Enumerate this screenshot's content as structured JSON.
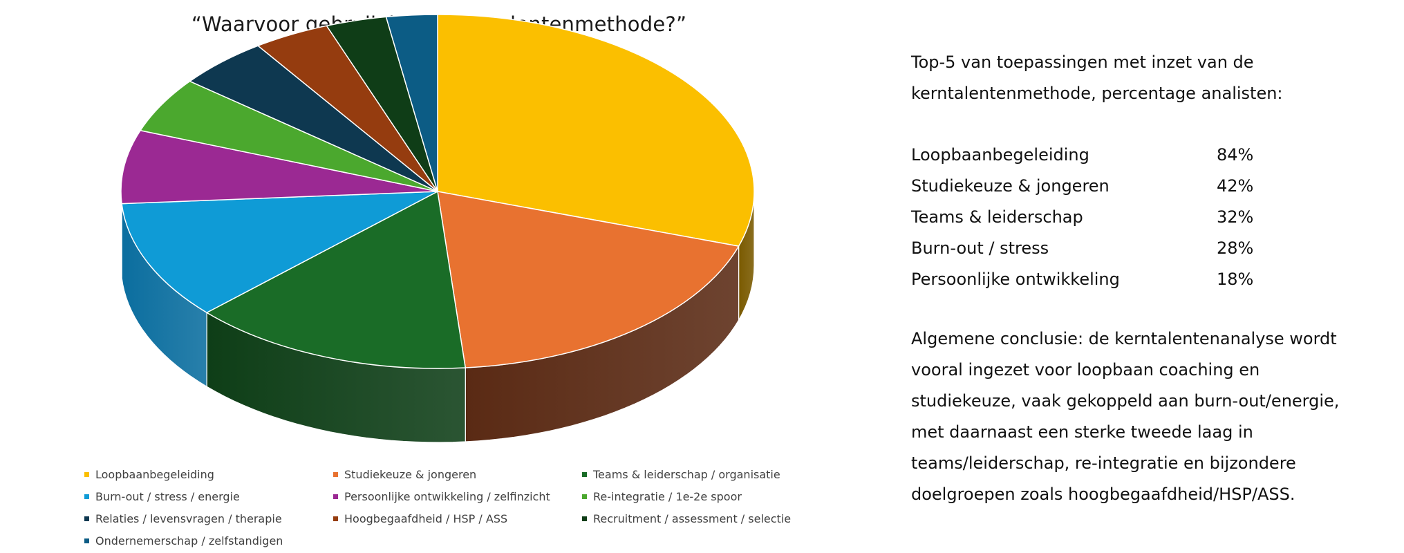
{
  "chart_data": {
    "type": "pie",
    "title": "“Waarvoor gebruik je de kerntalentenmethode?”",
    "categories": [
      "Loopbaanbegeleiding",
      "Studiekeuze & jongeren",
      "Teams & leiderschap / organisatie",
      "Burn-out / stress / energie",
      "Persoonlijke ontwikkeling / zelfinzicht",
      "Re-integratie / 1e-2e spoor",
      "Relaties / levensvragen / therapie",
      "Hoogbegaafdheid / HSP / ASS",
      "Recruitment / assessment / selectie",
      "Ondernemerschap / zelfstandigen"
    ],
    "values": [
      30.0,
      18.6,
      14.4,
      10.9,
      6.7,
      5.1,
      4.7,
      3.9,
      3.1,
      2.6
    ],
    "colors": [
      "#FBBF00",
      "#E87230",
      "#1A6C27",
      "#0F9BD6",
      "#9B2993",
      "#4BA82E",
      "#0E3850",
      "#953C0F",
      "#0F3D17",
      "#0C5C85"
    ],
    "side_colors": [
      "#7A5A00",
      "#5A2A14",
      "#0E3E17",
      "#0B6E9F",
      "#5C1A58",
      "#2C6518",
      "#08202E",
      "#5A2408",
      "#082310",
      "#083A55"
    ],
    "legend_position": "bottom",
    "style": "3d-pie"
  },
  "panel": {
    "intro": "Top-5 van toepassingen met inzet van de kerntalentenmethode, percentage analisten:",
    "top5": [
      {
        "name": "Loopbaanbegeleiding",
        "value": "84%"
      },
      {
        "name": "Studiekeuze & jongeren",
        "value": "42%"
      },
      {
        "name": "Teams & leiderschap",
        "value": "32%"
      },
      {
        "name": "Burn-out / stress",
        "value": "28%"
      },
      {
        "name": "Persoonlijke ontwikkeling",
        "value": "18%"
      }
    ],
    "conclusion": "Algemene conclusie: de kerntalentenanalyse wordt vooral ingezet voor loopbaan coaching en studiekeuze, vaak gekoppeld aan burn-out/energie, met daarnaast een sterke tweede laag in teams/leiderschap, re-integratie en bijzondere doelgroepen zoals hoogbegaafdheid/HSP/ASS."
  }
}
